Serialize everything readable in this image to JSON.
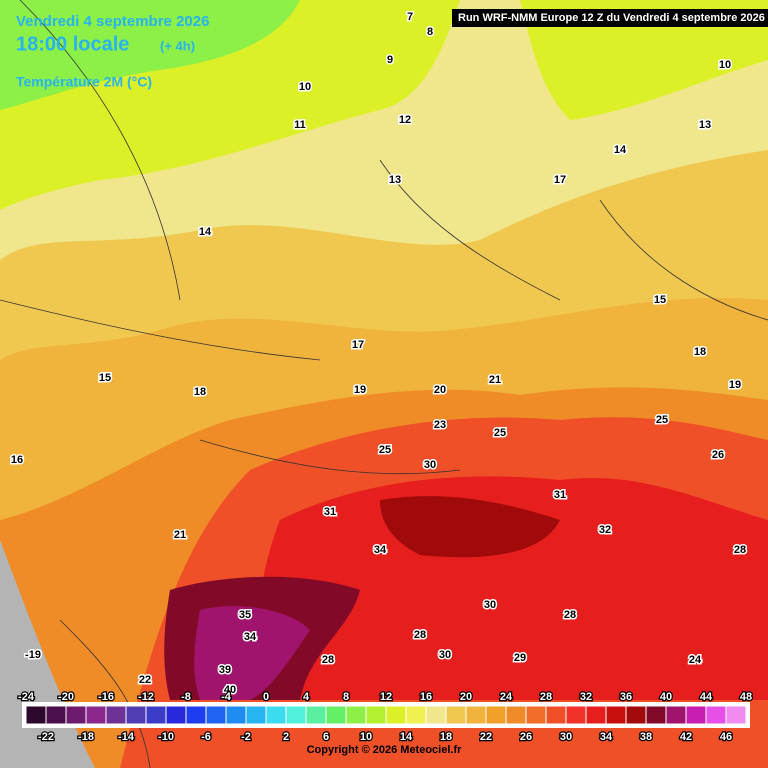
{
  "header": {
    "date": "Vendredi 4 septembre 2026",
    "time": "18:00 locale",
    "offset": "(+ 4h)",
    "variable": "Température 2M (°C)",
    "run": "Run WRF-NMM Europe 12 Z du Vendredi 4 septembre 2026"
  },
  "map_labels": [
    "7",
    "8",
    "9",
    "10",
    "11",
    "12",
    "13",
    "14",
    "15",
    "16",
    "17",
    "18",
    "19",
    "20",
    "21",
    "21",
    "23",
    "25",
    "25",
    "30",
    "31",
    "34",
    "31",
    "32",
    "30",
    "28",
    "30",
    "29",
    "28",
    "34",
    "35",
    "39",
    "40",
    "28",
    "15",
    "18",
    "19",
    "25",
    "26",
    "28",
    "24",
    "17",
    "14",
    "13",
    "10",
    "-19",
    "22"
  ],
  "scale": {
    "top_labels": [
      -24,
      -20,
      -16,
      -12,
      -8,
      -4,
      0,
      4,
      8,
      12,
      16,
      20,
      24,
      28,
      32,
      36,
      40,
      44,
      48
    ],
    "bottom_labels": [
      -22,
      -18,
      -14,
      -10,
      -6,
      -2,
      2,
      6,
      10,
      14,
      18,
      22,
      26,
      30,
      34,
      38,
      42,
      46
    ],
    "colors": [
      "#2d0a2d",
      "#4b0f4b",
      "#6e1a6e",
      "#8c288c",
      "#6e3296",
      "#503cb4",
      "#3c3cc8",
      "#2828dc",
      "#1e3cf0",
      "#1e64f0",
      "#1e8cf0",
      "#28b4f0",
      "#3cdcf0",
      "#50f0dc",
      "#5af0a0",
      "#64f064",
      "#8cf046",
      "#b4f032",
      "#dcf028",
      "#f0f050",
      "#f0e68c",
      "#f0c850",
      "#f0b43c",
      "#f0a028",
      "#f08c28",
      "#f06e28",
      "#f05028",
      "#f03228",
      "#e61e1e",
      "#c80f0f",
      "#a00a0a",
      "#820a28",
      "#a0146e",
      "#c81eb4",
      "#e650e6",
      "#f08cf0"
    ]
  },
  "copyright": "Copyright © 2026 Meteociel.fr"
}
